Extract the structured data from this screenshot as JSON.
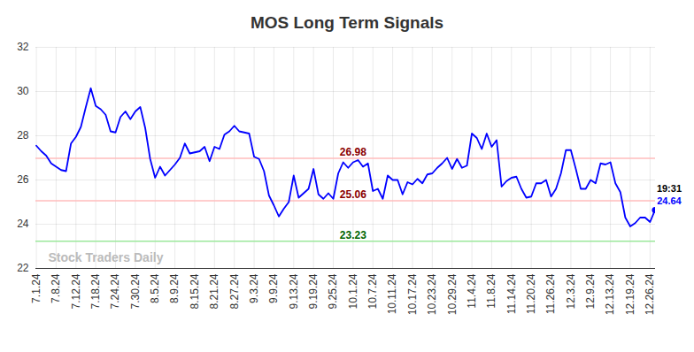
{
  "chart_data": {
    "type": "line",
    "title": "MOS Long Term Signals",
    "categories": [
      "7.1.24",
      null,
      null,
      null,
      "7.8.24",
      null,
      null,
      null,
      "7.12.24",
      null,
      null,
      null,
      "7.18.24",
      null,
      null,
      null,
      "7.24.24",
      null,
      null,
      null,
      "7.30.24",
      null,
      null,
      null,
      "8.5.24",
      null,
      null,
      null,
      "8.9.24",
      null,
      null,
      null,
      "8.15.24",
      null,
      null,
      null,
      "8.21.24",
      null,
      null,
      null,
      "8.27.24",
      null,
      null,
      null,
      "9.3.24",
      null,
      null,
      null,
      "9.9.24",
      null,
      null,
      null,
      "9.13.24",
      null,
      null,
      null,
      "9.19.24",
      null,
      null,
      null,
      "9.25.24",
      null,
      null,
      null,
      "10.1.24",
      null,
      null,
      null,
      "10.7.24",
      null,
      null,
      null,
      "10.11.24",
      null,
      null,
      null,
      "10.17.24",
      null,
      null,
      null,
      "10.23.24",
      null,
      null,
      null,
      "10.29.24",
      null,
      null,
      null,
      "11.4.24",
      null,
      null,
      null,
      "11.8.24",
      null,
      null,
      null,
      "11.14.24",
      null,
      null,
      null,
      "11.20.24",
      null,
      null,
      null,
      "11.26.24",
      null,
      null,
      null,
      "12.3.24",
      null,
      null,
      null,
      "12.9.24",
      null,
      null,
      null,
      "12.13.24",
      null,
      null,
      null,
      "12.19.24",
      null,
      null,
      null,
      "12.26.24",
      null
    ],
    "values": [
      27.55,
      27.3,
      27.1,
      26.75,
      26.6,
      26.45,
      26.4,
      27.65,
      27.95,
      28.4,
      29.3,
      30.15,
      29.35,
      29.2,
      28.95,
      28.2,
      28.15,
      28.85,
      29.1,
      28.75,
      29.1,
      29.3,
      28.35,
      26.95,
      26.1,
      26.6,
      26.2,
      26.45,
      26.7,
      27.0,
      27.65,
      27.2,
      27.25,
      27.3,
      27.5,
      26.85,
      27.5,
      27.4,
      28.05,
      28.2,
      28.45,
      28.2,
      28.15,
      28.1,
      27.05,
      26.95,
      26.4,
      25.3,
      24.85,
      24.35,
      24.7,
      25.0,
      26.2,
      25.2,
      25.4,
      25.6,
      26.5,
      25.35,
      25.15,
      25.4,
      25.15,
      26.3,
      26.8,
      26.55,
      26.8,
      26.9,
      26.6,
      26.75,
      25.5,
      25.6,
      25.15,
      26.2,
      26.0,
      26.0,
      25.35,
      25.9,
      25.8,
      26.05,
      25.85,
      26.25,
      26.3,
      26.55,
      26.75,
      27.0,
      26.5,
      26.95,
      26.55,
      26.65,
      28.1,
      27.9,
      27.4,
      28.1,
      27.5,
      27.8,
      25.7,
      25.95,
      26.1,
      26.15,
      25.6,
      25.2,
      25.25,
      25.85,
      25.85,
      26.0,
      25.25,
      25.6,
      26.3,
      27.35,
      27.35,
      26.5,
      25.6,
      25.6,
      26.0,
      25.85,
      26.75,
      26.7,
      26.8,
      25.85,
      25.45,
      24.3,
      23.9,
      24.05,
      24.3,
      24.3,
      24.1,
      24.64
    ],
    "color": "#0000ff",
    "ylim": [
      22,
      32
    ],
    "yticks": [
      22,
      24,
      26,
      28,
      30,
      32
    ],
    "grid": true,
    "reference_lines": [
      {
        "value": 26.98,
        "color": "#ffbcbc",
        "label_color": "#8b0000"
      },
      {
        "value": 25.06,
        "color": "#ffbcbc",
        "label_color": "#8b0000"
      },
      {
        "value": 23.23,
        "color": "#9be89b",
        "label_color": "#006400"
      }
    ],
    "annotation": "19:31",
    "caption": "Stock Traders Daily"
  }
}
